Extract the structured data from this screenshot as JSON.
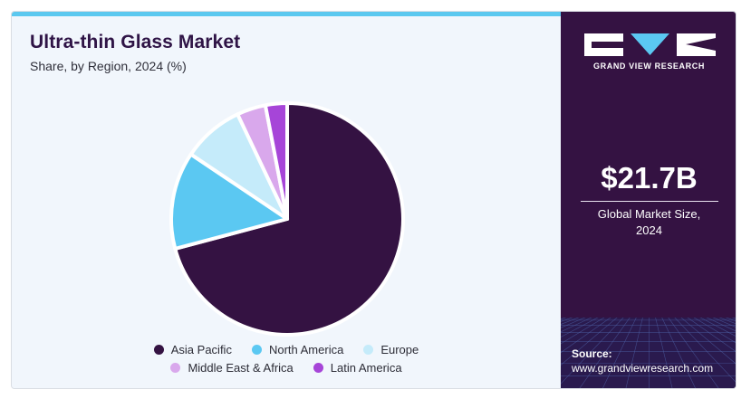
{
  "chart_data": {
    "type": "pie",
    "title": "Ultra-thin Glass Market",
    "subtitle": "Share, by Region, 2024 (%)",
    "categories": [
      "Asia Pacific",
      "North America",
      "Europe",
      "Middle East & Africa",
      "Latin America"
    ],
    "values": [
      70.5,
      13.5,
      8.5,
      4.0,
      3.0
    ],
    "colors": [
      "#341242",
      "#5bc8f2",
      "#c5ebfa",
      "#d9a8ec",
      "#a645d8"
    ],
    "legend": "bottom"
  },
  "legend_rows": [
    [
      "Asia Pacific",
      "North America",
      "Europe"
    ],
    [
      "Middle East & Africa",
      "Latin America"
    ]
  ],
  "sidebar": {
    "brand": "GRAND VIEW RESEARCH",
    "market_size": "$21.7B",
    "market_label_line1": "Global Market Size,",
    "market_label_line2": "2024",
    "source_label": "Source:",
    "source_url": "www.grandviewresearch.com"
  }
}
